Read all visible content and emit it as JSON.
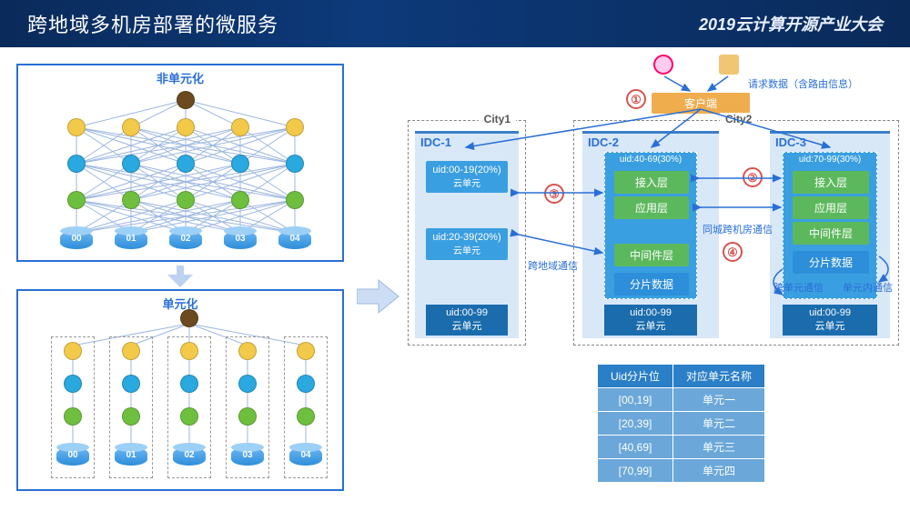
{
  "header": {
    "title": "跨地域多机房部署的微服务",
    "event": "2019云计算开源产业大会"
  },
  "left": {
    "top_title": "非单元化",
    "bottom_title": "单元化",
    "db_labels": [
      "00",
      "01",
      "02",
      "03",
      "04"
    ],
    "node_colors": {
      "root": "#6b4a1f",
      "l1": "#f3c94a",
      "l2": "#2aa8e0",
      "l3": "#6fbf3f"
    }
  },
  "right": {
    "client": "客户端",
    "request_label": "请求数据（含路由信息）",
    "city1": "City1",
    "city2": "City2",
    "idc1": {
      "title": "IDC-1",
      "u1": "uid:00-19(20%)",
      "u1l": "云单元",
      "u2": "uid:20-39(20%)",
      "u2l": "云单元",
      "bottom_uid": "uid:00-99",
      "bottom_l": "云单元"
    },
    "idc2": {
      "title": "IDC-2",
      "uid": "uid:40-69(30%)",
      "layers": [
        "接入层",
        "应用层",
        "中间件层"
      ],
      "data": "分片数据",
      "bottom_uid": "uid:00-99",
      "bottom_l": "云单元"
    },
    "idc3": {
      "title": "IDC-3",
      "uid": "uid:70-99(30%)",
      "layers": [
        "接入层",
        "应用层",
        "中间件层"
      ],
      "data": "分片数据",
      "bottom_uid": "uid:00-99",
      "bottom_l": "云单元"
    },
    "notes": {
      "cross_region": "跨地域通信",
      "same_city": "同城跨机房通信",
      "cross_unit": "跨单元通信",
      "in_unit": "单元内通信"
    },
    "steps": [
      "①",
      "②",
      "③",
      "④"
    ]
  },
  "table": {
    "headers": [
      "Uid分片位",
      "对应单元名称"
    ],
    "rows": [
      [
        "[00,19]",
        "单元一"
      ],
      [
        "[20,39]",
        "单元二"
      ],
      [
        "[40,69]",
        "单元三"
      ],
      [
        "[70,99]",
        "单元四"
      ]
    ]
  },
  "colors": {
    "blue": "#3a9fe0",
    "green": "#5cb85c",
    "orange": "#f0ad4e",
    "red": "#d9534f",
    "border": "#2a6fd6",
    "panel_bg": "#d9e8f7"
  }
}
